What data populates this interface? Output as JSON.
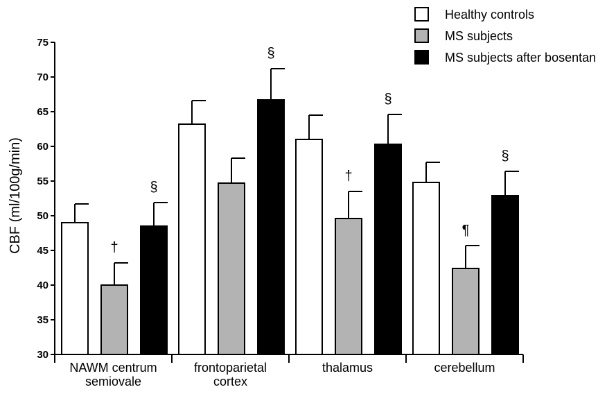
{
  "chart_data": {
    "type": "bar",
    "ylabel": "CBF  (ml/100g/min)",
    "ylim": [
      30,
      75
    ],
    "yticks": [
      30,
      35,
      40,
      45,
      50,
      55,
      60,
      65,
      70,
      75
    ],
    "categories": [
      [
        "NAWM centrum",
        "semiovale"
      ],
      [
        "frontoparietal",
        "cortex"
      ],
      [
        "thalamus"
      ],
      [
        "cerebellum"
      ]
    ],
    "series": [
      {
        "name": "Healthy controls",
        "color": "#ffffff",
        "values": [
          49.0,
          63.2,
          61.0,
          54.8
        ],
        "errors": [
          2.7,
          3.4,
          3.5,
          2.9
        ],
        "annotations": [
          "",
          "",
          "",
          ""
        ]
      },
      {
        "name": "MS subjects",
        "color": "#b3b3b3",
        "values": [
          40.0,
          54.7,
          49.6,
          42.4
        ],
        "errors": [
          3.2,
          3.6,
          3.9,
          3.3
        ],
        "annotations": [
          "†",
          "",
          "†",
          "¶"
        ]
      },
      {
        "name": "MS subjects after bosentan",
        "color": "#000000",
        "values": [
          48.5,
          66.7,
          60.3,
          52.9
        ],
        "errors": [
          3.4,
          4.5,
          4.3,
          3.5
        ],
        "annotations": [
          "§",
          "§",
          "§",
          "§"
        ]
      }
    ],
    "legend_position": "top-right",
    "grid": false
  }
}
